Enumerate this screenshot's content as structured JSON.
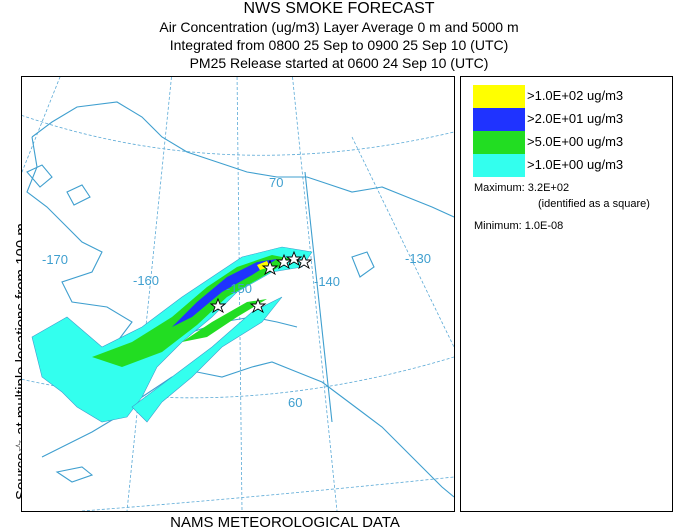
{
  "header": {
    "title": "NWS SMOKE FORECAST",
    "line1": "Air Concentration (ug/m3) Layer Average    0 m and  5000 m",
    "line2": "Integrated from 0800 25 Sep to 0900 25 Sep 10 (UTC)",
    "line3": "PM25 Release started at 0600 24 Sep 10 (UTC)"
  },
  "side_label": "Source☆   at multiple locations     from   100 m",
  "footer": "NAMS METEOROLOGICAL DATA",
  "map": {
    "lat_labels": [
      "70",
      "60"
    ],
    "lon_labels": [
      "-170",
      "-160",
      "-150",
      "-140",
      "-130"
    ],
    "colors": {
      "coast": "#3f9fcf",
      "graticule": "#5aa9d6",
      "yellow": "#ffff00",
      "blue": "#1f33ff",
      "green": "#22dd22",
      "cyan": "#33ffee"
    }
  },
  "legend": {
    "items": [
      {
        "label": ">1.0E+02 ug/m3",
        "color": "#ffff00"
      },
      {
        "label": ">2.0E+01 ug/m3",
        "color": "#1f33ff"
      },
      {
        "label": ">5.0E+00 ug/m3",
        "color": "#22dd22"
      },
      {
        "label": ">1.0E+00 ug/m3",
        "color": "#33ffee"
      }
    ],
    "maximum": "Maximum: 3.2E+02",
    "maximum_note": "(identified as a square)",
    "minimum": "Minimum: 1.0E-08"
  }
}
